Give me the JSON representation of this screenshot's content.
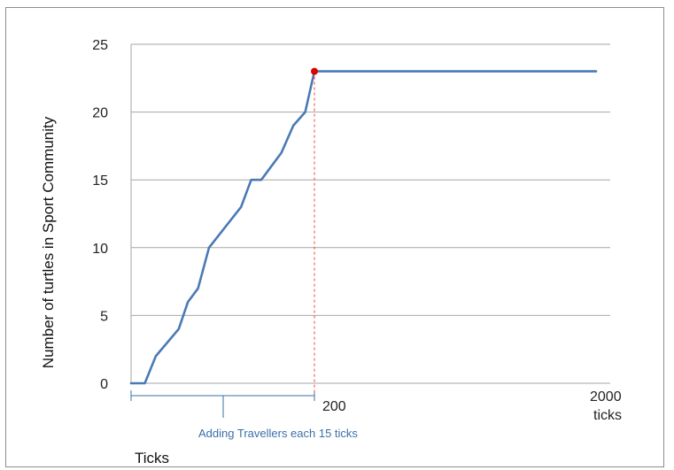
{
  "chart_data": {
    "type": "line",
    "title": "",
    "ylabel": "Number of turtles in Sport Community",
    "xlabel": "Ticks",
    "ylim": [
      0,
      25
    ],
    "yticks": [
      0,
      5,
      10,
      15,
      20,
      25
    ],
    "grid": true,
    "legend": "none",
    "x_tick_labels": [
      "200",
      "2000 ticks"
    ],
    "annotation": "Adding Travellers  each 15 ticks",
    "series": [
      {
        "color": "#4a7ab5",
        "ramp_points": [
          {
            "x": 0,
            "y": 0
          },
          {
            "x": 15,
            "y": 0
          },
          {
            "x": 27,
            "y": 2
          },
          {
            "x": 52,
            "y": 4
          },
          {
            "x": 62,
            "y": 6
          },
          {
            "x": 73,
            "y": 7
          },
          {
            "x": 85,
            "y": 10
          },
          {
            "x": 120,
            "y": 13
          },
          {
            "x": 131,
            "y": 15
          },
          {
            "x": 142,
            "y": 15
          },
          {
            "x": 164,
            "y": 17
          },
          {
            "x": 177,
            "y": 19
          },
          {
            "x": 190,
            "y": 20
          },
          {
            "x": 200,
            "y": 23
          }
        ],
        "plateau": {
          "from": "200",
          "to": "2000 ticks",
          "y": 23
        }
      }
    ],
    "marker": {
      "x": 200,
      "y": 23,
      "color": "#e00000"
    },
    "marker_line_color": "#ff3b3b"
  }
}
